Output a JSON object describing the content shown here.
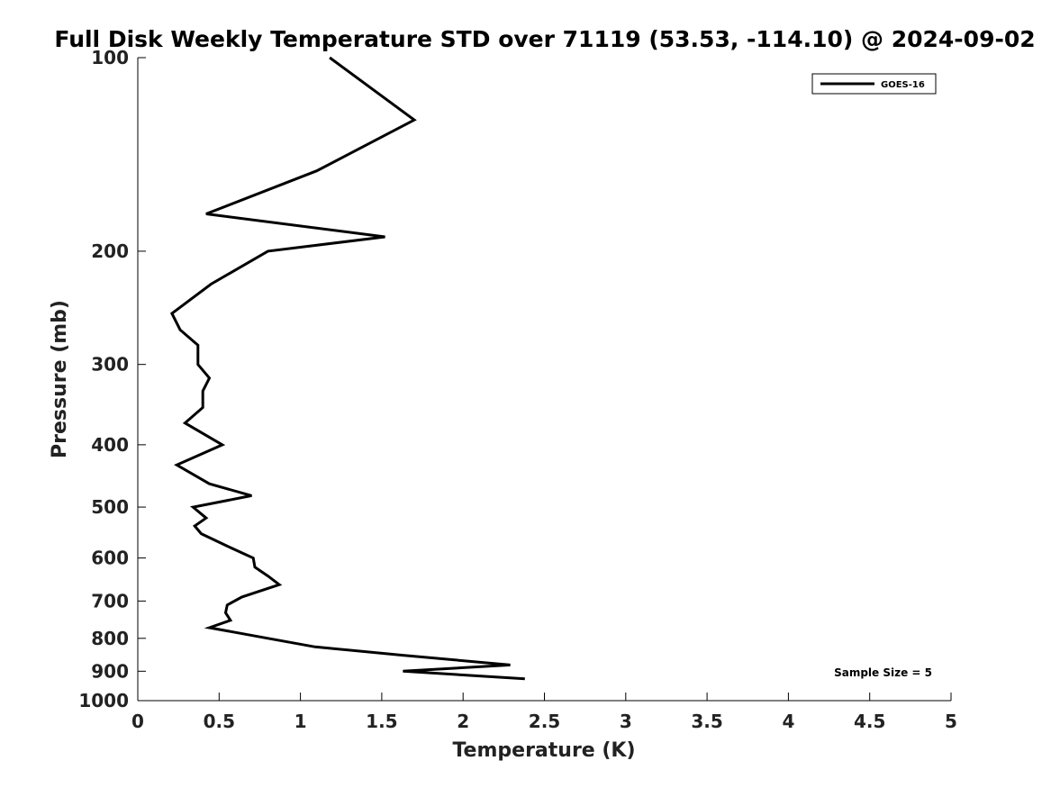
{
  "chart_data": {
    "type": "line",
    "title": "Full Disk Weekly Temperature STD over 71119 (53.53, -114.10) @ 2024-09-02",
    "xlabel": "Temperature (K)",
    "ylabel": "Pressure (mb)",
    "xlim": [
      0,
      5
    ],
    "ylim": [
      100,
      1000
    ],
    "y_scale": "log",
    "y_reversed": true,
    "xticks": [
      0,
      0.5,
      1,
      1.5,
      2,
      2.5,
      3,
      3.5,
      4,
      4.5,
      5
    ],
    "xtick_labels": [
      "0",
      "0.5",
      "1",
      "1.5",
      "2",
      "2.5",
      "3",
      "3.5",
      "4",
      "4.5",
      "5"
    ],
    "yticks": [
      100,
      200,
      300,
      400,
      500,
      600,
      700,
      800,
      900,
      1000
    ],
    "ytick_labels": [
      "100",
      "200",
      "300",
      "400",
      "500",
      "600",
      "700",
      "800",
      "900",
      "1000"
    ],
    "grid": false,
    "legend_position": "top-right",
    "annotation": "Sample Size = 5",
    "series": [
      {
        "name": "GOES-16",
        "color": "#000000",
        "x": [
          1.18,
          1.7,
          1.1,
          0.42,
          1.52,
          0.8,
          0.45,
          0.21,
          0.26,
          0.37,
          0.37,
          0.44,
          0.4,
          0.4,
          0.29,
          0.52,
          0.24,
          0.44,
          0.7,
          0.34,
          0.42,
          0.35,
          0.39,
          0.55,
          0.71,
          0.72,
          0.8,
          0.87,
          0.64,
          0.55,
          0.54,
          0.57,
          0.44,
          0.8,
          1.09,
          1.63,
          2.29,
          1.63,
          2.38
        ],
        "y": [
          100,
          125,
          150,
          175,
          190,
          200,
          225,
          250,
          265,
          280,
          300,
          315,
          330,
          350,
          370,
          400,
          430,
          460,
          480,
          500,
          520,
          535,
          550,
          575,
          600,
          620,
          640,
          660,
          690,
          710,
          730,
          750,
          770,
          800,
          825,
          850,
          880,
          900,
          925
        ]
      }
    ]
  }
}
